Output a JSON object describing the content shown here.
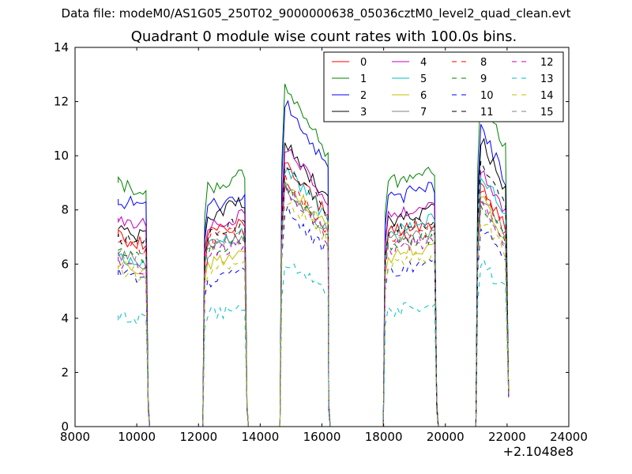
{
  "suptitle": "Data file: modeM0/AS1G05_250T02_9000000638_05036cztM0_level2_quad_clean.evt",
  "chart_data": {
    "type": "line",
    "title": "Quadrant 0 module wise count rates with 100.0s bins.",
    "xlabel": "",
    "ylabel": "",
    "x_offset_label": "+2.1048e8",
    "xlim": [
      8000,
      24000
    ],
    "ylim": [
      0,
      14
    ],
    "xticks": [
      "8000",
      "10000",
      "12000",
      "14000",
      "16000",
      "18000",
      "20000",
      "22000",
      "24000"
    ],
    "yticks": [
      "0",
      "2",
      "4",
      "6",
      "8",
      "10",
      "12",
      "14"
    ],
    "legend_position": "upper-right",
    "legend_columns": 4,
    "segments": [
      {
        "start": 9400,
        "end": 10300
      },
      {
        "start": 12200,
        "end": 13500
      },
      {
        "start": 14700,
        "end": 16150
      },
      {
        "start": 18050,
        "end": 19650
      },
      {
        "start": 21050,
        "end": 22050
      }
    ],
    "series": [
      {
        "name": "0",
        "color": "#ff0000",
        "dashed": false,
        "levels": [
          7.0,
          7.4,
          8.8,
          7.4,
          8.2
        ]
      },
      {
        "name": "1",
        "color": "#008000",
        "dashed": false,
        "levels": [
          9.0,
          9.1,
          11.4,
          9.3,
          11.3
        ]
      },
      {
        "name": "2",
        "color": "#0000ff",
        "dashed": false,
        "levels": [
          8.4,
          8.4,
          10.8,
          8.7,
          10.1
        ]
      },
      {
        "name": "3",
        "color": "#000000",
        "dashed": false,
        "levels": [
          7.3,
          8.1,
          9.5,
          7.9,
          9.7
        ]
      },
      {
        "name": "4",
        "color": "#bf00bf",
        "dashed": false,
        "levels": [
          7.7,
          7.7,
          9.4,
          8.0,
          8.6
        ]
      },
      {
        "name": "5",
        "color": "#00bfbf",
        "dashed": false,
        "levels": [
          6.3,
          7.0,
          8.7,
          7.5,
          8.6
        ]
      },
      {
        "name": "6",
        "color": "#bfbf00",
        "dashed": false,
        "levels": [
          5.9,
          6.2,
          8.3,
          6.5,
          7.7
        ]
      },
      {
        "name": "7",
        "color": "#808080",
        "dashed": false,
        "levels": [
          6.3,
          6.9,
          8.1,
          7.1,
          7.8
        ]
      },
      {
        "name": "8",
        "color": "#ff0000",
        "dashed": true,
        "levels": [
          6.8,
          7.1,
          8.3,
          7.2,
          7.9
        ]
      },
      {
        "name": "9",
        "color": "#008000",
        "dashed": true,
        "levels": [
          6.5,
          6.7,
          8.0,
          6.9,
          7.6
        ]
      },
      {
        "name": "10",
        "color": "#0000ff",
        "dashed": true,
        "levels": [
          5.6,
          5.6,
          7.3,
          5.9,
          6.8
        ]
      },
      {
        "name": "11",
        "color": "#000000",
        "dashed": true,
        "levels": [
          7.0,
          7.4,
          8.9,
          7.5,
          8.9
        ]
      },
      {
        "name": "12",
        "color": "#bf00bf",
        "dashed": true,
        "levels": [
          6.1,
          6.6,
          7.9,
          6.8,
          7.5
        ]
      },
      {
        "name": "13",
        "color": "#00bfbf",
        "dashed": true,
        "levels": [
          4.1,
          4.3,
          5.6,
          4.4,
          5.5
        ]
      },
      {
        "name": "14",
        "color": "#bfbf00",
        "dashed": true,
        "levels": [
          5.8,
          6.0,
          7.7,
          6.2,
          7.1
        ]
      },
      {
        "name": "15",
        "color": "#808080",
        "dashed": true,
        "levels": [
          6.4,
          6.8,
          8.2,
          6.9,
          7.6
        ]
      }
    ]
  }
}
